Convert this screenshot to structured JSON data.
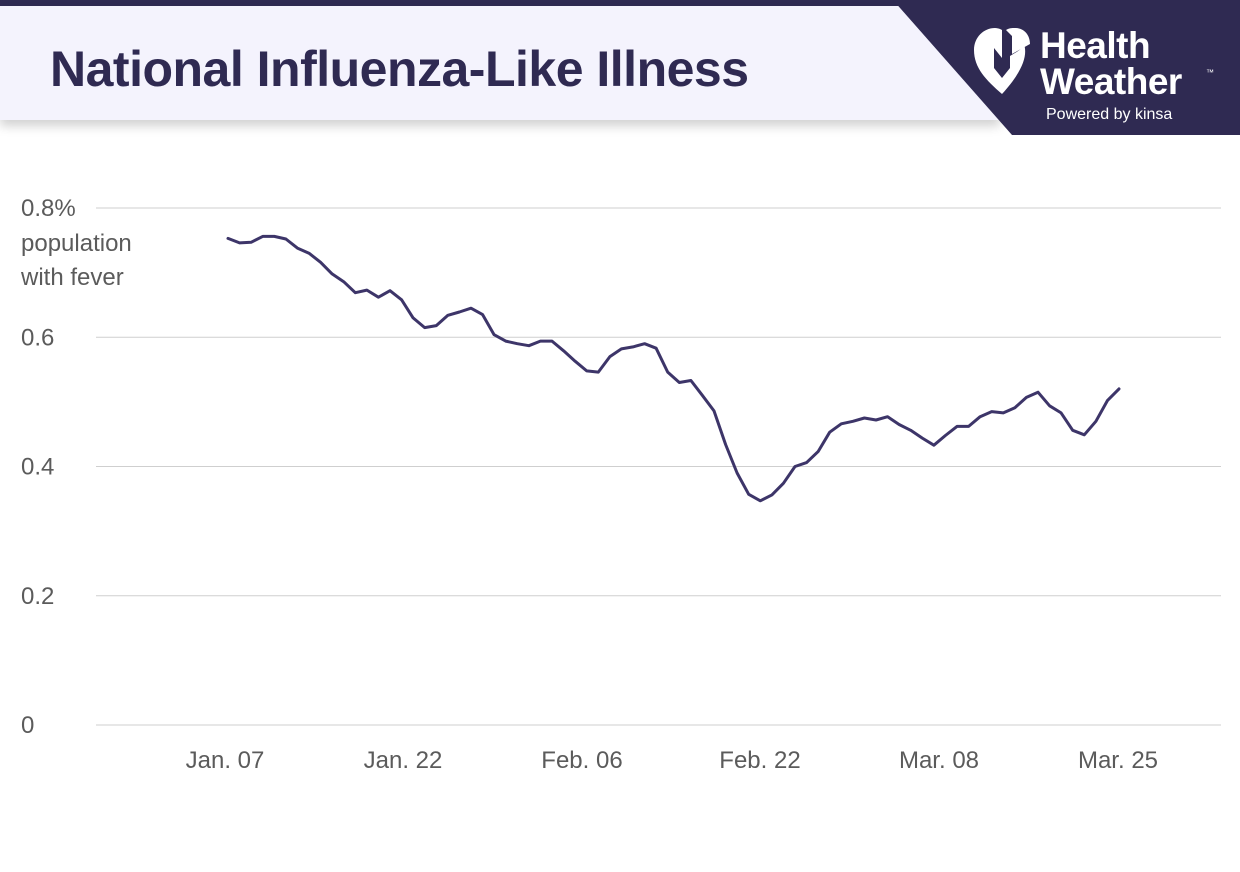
{
  "header": {
    "title": "National Influenza-Like Illness"
  },
  "brand": {
    "name_line1": "Health",
    "name_line2": "Weather",
    "trademark": "™",
    "tagline": "Powered by kinsa",
    "logo_icon": "heart-with-k-icon",
    "background_color": "#2f2a52"
  },
  "chart_data": {
    "type": "line",
    "title": "National Influenza-Like Illness",
    "ylabel": "population with fever",
    "y_unit": "%",
    "ylim": [
      0,
      0.8
    ],
    "y_ticks": [
      {
        "value": 0,
        "label": "0"
      },
      {
        "value": 0.2,
        "label": "0.2"
      },
      {
        "value": 0.4,
        "label": "0.4"
      },
      {
        "value": 0.6,
        "label": "0.6"
      },
      {
        "value": 0.8,
        "label": "0.8%"
      }
    ],
    "x_tick_labels": [
      "Jan. 07",
      "Jan. 22",
      "Feb. 06",
      "Feb. 22",
      "Mar. 08",
      "Mar. 25"
    ],
    "grid": true,
    "line_color": "#3d3569",
    "series": [
      {
        "values": [
          0.753,
          0.746,
          0.747,
          0.756,
          0.756,
          0.752,
          0.738,
          0.73,
          0.716,
          0.698,
          0.686,
          0.669,
          0.673,
          0.662,
          0.672,
          0.658,
          0.63,
          0.615,
          0.618,
          0.634,
          0.639,
          0.645,
          0.635,
          0.604,
          0.594,
          0.59,
          0.587,
          0.594,
          0.594,
          0.579,
          0.563,
          0.548,
          0.546,
          0.57,
          0.582,
          0.585,
          0.59,
          0.583,
          0.546,
          0.53,
          0.533,
          0.51,
          0.486,
          0.434,
          0.39,
          0.357,
          0.347,
          0.356,
          0.374,
          0.4,
          0.406,
          0.423,
          0.453,
          0.466,
          0.47,
          0.475,
          0.472,
          0.477,
          0.465,
          0.456,
          0.444,
          0.433,
          0.448,
          0.462,
          0.462,
          0.477,
          0.485,
          0.483,
          0.491,
          0.507,
          0.515,
          0.494,
          0.483,
          0.456,
          0.449,
          0.47,
          0.502,
          0.52
        ]
      }
    ]
  }
}
